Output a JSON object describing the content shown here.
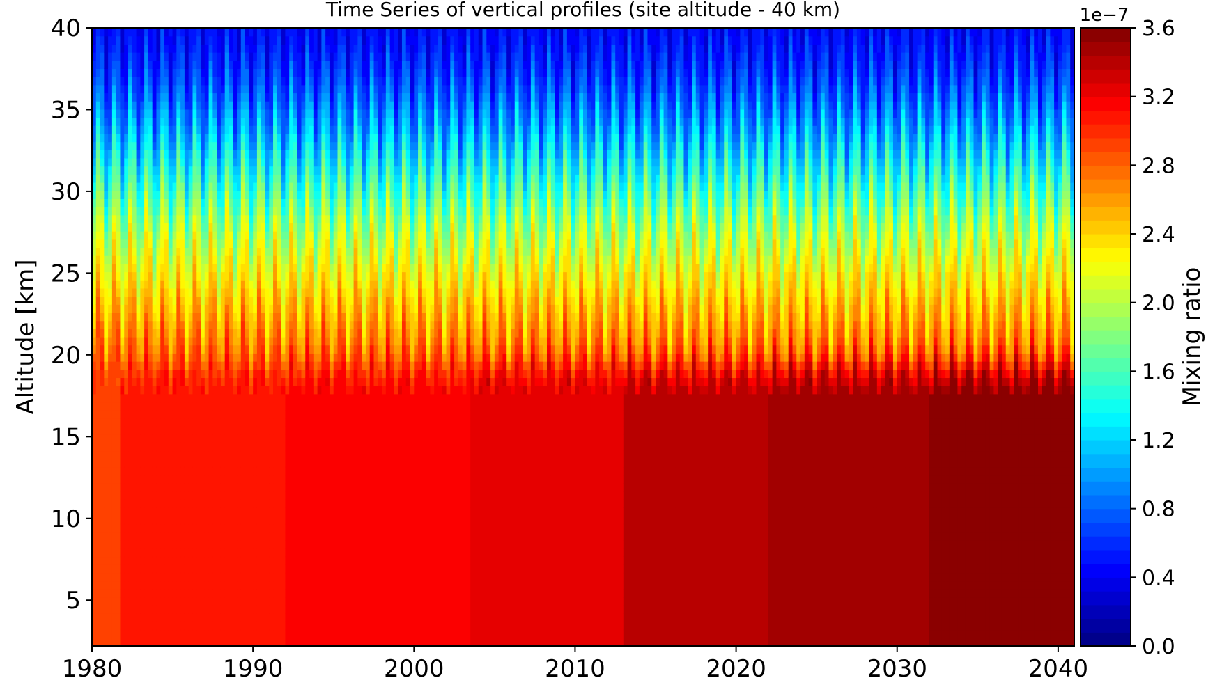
{
  "chart_data": {
    "type": "heatmap",
    "title": "Time Series of vertical profiles (site altitude - 40 km)",
    "xlabel": "",
    "ylabel": "Altitude [km]",
    "xlim": [
      1980,
      2041
    ],
    "ylim": [
      2.2,
      40
    ],
    "x_ticks": [
      1980,
      1990,
      2000,
      2010,
      2020,
      2030,
      2040
    ],
    "y_ticks": [
      5,
      10,
      15,
      20,
      25,
      30,
      35,
      40
    ],
    "colormap": "jet",
    "colorbar": {
      "label": "Mixing ratio",
      "offset_text": "1e−7",
      "range": [
        0.0,
        3.6
      ],
      "ticks": [
        "0.0",
        "0.4",
        "0.8",
        "1.2",
        "1.6",
        "2.0",
        "2.4",
        "2.8",
        "3.2",
        "3.6"
      ],
      "levels": 45
    },
    "lower_troposphere_band_values_e7": [
      {
        "from": 1980.0,
        "to": 1981.8,
        "value": 2.95
      },
      {
        "from": 1981.8,
        "to": 1992.0,
        "value": 3.1
      },
      {
        "from": 1992.0,
        "to": 2003.5,
        "value": 3.15
      },
      {
        "from": 2003.5,
        "to": 2013.0,
        "value": 3.28
      },
      {
        "from": 2013.0,
        "to": 2022.0,
        "value": 3.38
      },
      {
        "from": 2022.0,
        "to": 2032.0,
        "value": 3.46
      },
      {
        "from": 2032.0,
        "to": 2041.0,
        "value": 3.54
      }
    ],
    "profile_anchor_values_e7": {
      "altitudes_km": [
        2.2,
        16,
        19,
        21,
        23,
        26,
        29,
        32,
        35,
        38,
        40
      ],
      "values": [
        null,
        null,
        2.9,
        2.7,
        2.45,
        2.2,
        1.75,
        1.3,
        0.85,
        0.55,
        0.4
      ]
    },
    "seasonal_cycle": {
      "period_years": 1,
      "descriptor": "annual oscillation of the stratospheric profile"
    }
  },
  "colors": {
    "axes": "#000000",
    "background": "#ffffff"
  }
}
